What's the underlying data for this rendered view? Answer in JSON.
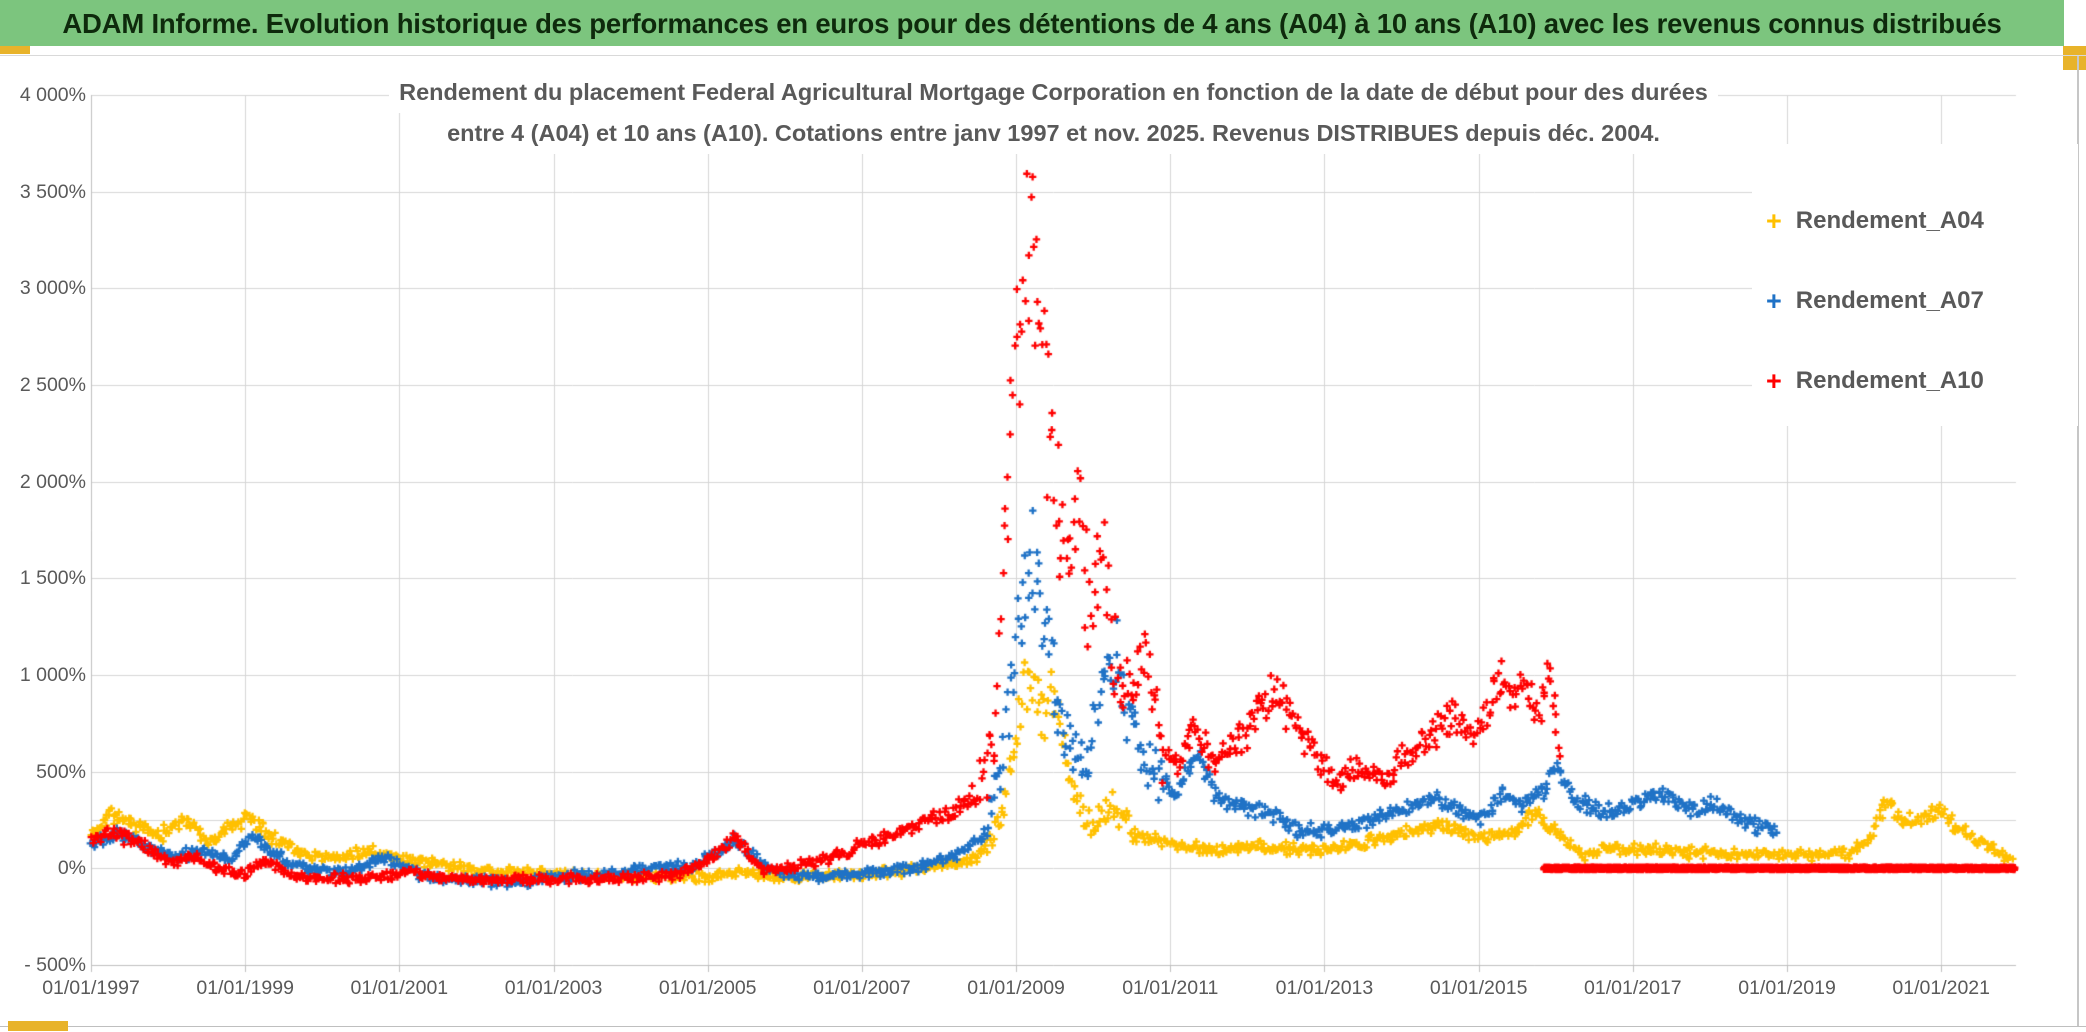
{
  "header": {
    "title": "ADAM Informe. Evolution historique des performances en euros pour des détentions de 4 ans (A04) à 10 ans (A10) avec les revenus connus distribués"
  },
  "chrome": {
    "header_bg": "#7cc57e",
    "header_text": "#0e2a0c",
    "accent_gold": "#e8b32a",
    "grid_color": "#d6d6d6",
    "axis_color": "#bfbfbf",
    "label_color": "#595959"
  },
  "chart_data": {
    "type": "scatter",
    "title_line1": "Rendement du placement Federal Agricultural Mortgage Corporation en fonction de la date de début pour des durées",
    "title_line2": "entre 4 (A04) et 10 ans (A10). Cotations entre janv 1997 et nov. 2025. Revenus DISTRIBUES depuis déc. 2004.",
    "grid": true,
    "legend_position": "right",
    "x_domain_years": [
      1997.0,
      2021.97
    ],
    "y_domain": [
      -500,
      4000
    ],
    "extra_gridline_value": 250,
    "x_ticks": [
      {
        "label": "01/01/1997",
        "year": 1997
      },
      {
        "label": "01/01/1999",
        "year": 1999
      },
      {
        "label": "01/01/2001",
        "year": 2001
      },
      {
        "label": "01/01/2003",
        "year": 2003
      },
      {
        "label": "01/01/2005",
        "year": 2005
      },
      {
        "label": "01/01/2007",
        "year": 2007
      },
      {
        "label": "01/01/2009",
        "year": 2009
      },
      {
        "label": "01/01/2011",
        "year": 2011
      },
      {
        "label": "01/01/2013",
        "year": 2013
      },
      {
        "label": "01/01/2015",
        "year": 2015
      },
      {
        "label": "01/01/2017",
        "year": 2017
      },
      {
        "label": "01/01/2019",
        "year": 2019
      },
      {
        "label": "01/01/2021",
        "year": 2021
      }
    ],
    "y_ticks": [
      {
        "label": "4 000%",
        "value": 4000
      },
      {
        "label": "3 500%",
        "value": 3500
      },
      {
        "label": "3 000%",
        "value": 3000
      },
      {
        "label": "2 500%",
        "value": 2500
      },
      {
        "label": "2 000%",
        "value": 2000
      },
      {
        "label": "1 500%",
        "value": 1500
      },
      {
        "label": "1 000%",
        "value": 1000
      },
      {
        "label": "500%",
        "value": 500
      },
      {
        "label": "0%",
        "value": 0
      },
      {
        "label": "- 500%",
        "value": -500
      }
    ],
    "series": [
      {
        "name": "Rendement_A04",
        "color": "#FFC000",
        "end": 2021.92,
        "control_points": [
          [
            1997.0,
            170
          ],
          [
            1997.25,
            280
          ],
          [
            1997.6,
            220
          ],
          [
            1997.9,
            170
          ],
          [
            1998.2,
            255
          ],
          [
            1998.55,
            135
          ],
          [
            1998.75,
            190
          ],
          [
            1999.05,
            275
          ],
          [
            1999.4,
            150
          ],
          [
            1999.8,
            75
          ],
          [
            2000.2,
            55
          ],
          [
            2000.6,
            95
          ],
          [
            2001.1,
            45
          ],
          [
            2001.6,
            15
          ],
          [
            2002.2,
            -15
          ],
          [
            2003.0,
            -30
          ],
          [
            2003.6,
            -45
          ],
          [
            2004.3,
            -40
          ],
          [
            2005.0,
            -45
          ],
          [
            2005.45,
            -15
          ],
          [
            2005.9,
            -50
          ],
          [
            2006.6,
            -40
          ],
          [
            2007.3,
            -25
          ],
          [
            2008.0,
            10
          ],
          [
            2008.5,
            60
          ],
          [
            2008.8,
            250
          ],
          [
            2009.0,
            650
          ],
          [
            2009.15,
            1000
          ],
          [
            2009.35,
            820
          ],
          [
            2009.5,
            950
          ],
          [
            2009.7,
            430
          ],
          [
            2009.95,
            230
          ],
          [
            2010.25,
            300
          ],
          [
            2010.6,
            170
          ],
          [
            2011.0,
            130
          ],
          [
            2011.5,
            95
          ],
          [
            2012.0,
            105
          ],
          [
            2012.4,
            110
          ],
          [
            2013.0,
            88
          ],
          [
            2013.8,
            160
          ],
          [
            2014.5,
            230
          ],
          [
            2015.1,
            160
          ],
          [
            2015.5,
            200
          ],
          [
            2015.75,
            290
          ],
          [
            2016.1,
            150
          ],
          [
            2016.35,
            60
          ],
          [
            2016.6,
            100
          ],
          [
            2017.2,
            100
          ],
          [
            2017.8,
            80
          ],
          [
            2018.5,
            72
          ],
          [
            2019.2,
            65
          ],
          [
            2019.8,
            80
          ],
          [
            2020.1,
            170
          ],
          [
            2020.28,
            355
          ],
          [
            2020.5,
            240
          ],
          [
            2020.75,
            250
          ],
          [
            2020.95,
            300
          ],
          [
            2021.2,
            210
          ],
          [
            2021.5,
            140
          ],
          [
            2021.7,
            90
          ],
          [
            2021.92,
            35
          ]
        ],
        "render": {
          "seed": 11,
          "base_noise": 30,
          "rel_noise": 0.07,
          "wild": [
            [
              2008.6,
              2010.6,
              2.0
            ]
          ],
          "clamp": [
            -70,
            1200
          ]
        }
      },
      {
        "name": "Rendement_A07",
        "color": "#1F72C6",
        "end": 2018.88,
        "control_points": [
          [
            1997.0,
            135
          ],
          [
            1997.35,
            195
          ],
          [
            1997.8,
            95
          ],
          [
            1998.1,
            65
          ],
          [
            1998.5,
            90
          ],
          [
            1998.8,
            45
          ],
          [
            1999.1,
            165
          ],
          [
            1999.5,
            40
          ],
          [
            1999.9,
            -5
          ],
          [
            2000.3,
            -25
          ],
          [
            2000.8,
            55
          ],
          [
            2001.3,
            -35
          ],
          [
            2001.9,
            -65
          ],
          [
            2002.3,
            -78
          ],
          [
            2002.9,
            -55
          ],
          [
            2003.6,
            -25
          ],
          [
            2004.2,
            -5
          ],
          [
            2004.8,
            15
          ],
          [
            2005.35,
            140
          ],
          [
            2005.9,
            -25
          ],
          [
            2006.5,
            -45
          ],
          [
            2007.1,
            -25
          ],
          [
            2007.7,
            5
          ],
          [
            2008.2,
            60
          ],
          [
            2008.6,
            180
          ],
          [
            2008.85,
            650
          ],
          [
            2009.05,
            1350
          ],
          [
            2009.2,
            1700
          ],
          [
            2009.35,
            1250
          ],
          [
            2009.55,
            850
          ],
          [
            2009.75,
            600
          ],
          [
            2009.95,
            560
          ],
          [
            2010.15,
            1000
          ],
          [
            2010.3,
            1080
          ],
          [
            2010.55,
            680
          ],
          [
            2010.8,
            470
          ],
          [
            2011.1,
            400
          ],
          [
            2011.35,
            620
          ],
          [
            2011.6,
            360
          ],
          [
            2011.9,
            310
          ],
          [
            2012.3,
            295
          ],
          [
            2012.7,
            190
          ],
          [
            2013.2,
            210
          ],
          [
            2013.7,
            255
          ],
          [
            2014.1,
            315
          ],
          [
            2014.45,
            360
          ],
          [
            2014.8,
            295
          ],
          [
            2015.05,
            255
          ],
          [
            2015.3,
            385
          ],
          [
            2015.55,
            330
          ],
          [
            2015.85,
            400
          ],
          [
            2016.02,
            545
          ],
          [
            2016.2,
            380
          ],
          [
            2016.5,
            300
          ],
          [
            2016.8,
            290
          ],
          [
            2017.1,
            350
          ],
          [
            2017.35,
            400
          ],
          [
            2017.6,
            330
          ],
          [
            2017.9,
            300
          ],
          [
            2018.1,
            340
          ],
          [
            2018.4,
            250
          ],
          [
            2018.65,
            220
          ],
          [
            2018.88,
            190
          ]
        ],
        "render": {
          "seed": 22,
          "base_noise": 30,
          "rel_noise": 0.07,
          "wild": [
            [
              2008.6,
              2010.9,
              2.5
            ]
          ],
          "clamp": [
            -95,
            1850
          ]
        }
      },
      {
        "name": "Rendement_A10",
        "color": "#FF0000",
        "end": 2016.05,
        "control_points": [
          [
            1997.0,
            150
          ],
          [
            1997.3,
            185
          ],
          [
            1997.7,
            110
          ],
          [
            1998.0,
            35
          ],
          [
            1998.35,
            60
          ],
          [
            1998.7,
            -15
          ],
          [
            1999.0,
            -30
          ],
          [
            1999.25,
            45
          ],
          [
            1999.6,
            -45
          ],
          [
            2000.0,
            -55
          ],
          [
            2000.6,
            -50
          ],
          [
            2001.1,
            -20
          ],
          [
            2001.7,
            -55
          ],
          [
            2002.4,
            -60
          ],
          [
            2003.2,
            -58
          ],
          [
            2004.0,
            -52
          ],
          [
            2004.6,
            -35
          ],
          [
            2005.05,
            55
          ],
          [
            2005.35,
            160
          ],
          [
            2005.7,
            -5
          ],
          [
            2006.1,
            5
          ],
          [
            2006.6,
            55
          ],
          [
            2007.0,
            120
          ],
          [
            2007.4,
            170
          ],
          [
            2007.8,
            230
          ],
          [
            2008.2,
            300
          ],
          [
            2008.5,
            390
          ],
          [
            2008.75,
            700
          ],
          [
            2008.95,
            2400
          ],
          [
            2009.1,
            3100
          ],
          [
            2009.18,
            3450
          ],
          [
            2009.3,
            2700
          ],
          [
            2009.45,
            2200
          ],
          [
            2009.6,
            1550
          ],
          [
            2009.8,
            1820
          ],
          [
            2009.95,
            1450
          ],
          [
            2010.12,
            1650
          ],
          [
            2010.3,
            1050
          ],
          [
            2010.5,
            880
          ],
          [
            2010.68,
            1120
          ],
          [
            2010.9,
            620
          ],
          [
            2011.1,
            500
          ],
          [
            2011.3,
            760
          ],
          [
            2011.55,
            545
          ],
          [
            2011.75,
            600
          ],
          [
            2011.95,
            660
          ],
          [
            2012.15,
            820
          ],
          [
            2012.35,
            930
          ],
          [
            2012.6,
            740
          ],
          [
            2012.9,
            610
          ],
          [
            2013.15,
            445
          ],
          [
            2013.45,
            520
          ],
          [
            2013.75,
            480
          ],
          [
            2014.05,
            560
          ],
          [
            2014.35,
            670
          ],
          [
            2014.65,
            780
          ],
          [
            2014.9,
            690
          ],
          [
            2015.1,
            790
          ],
          [
            2015.3,
            1020
          ],
          [
            2015.45,
            830
          ],
          [
            2015.6,
            980
          ],
          [
            2015.78,
            800
          ],
          [
            2015.92,
            1020
          ],
          [
            2016.05,
            580
          ]
        ],
        "render": {
          "seed": 33,
          "base_noise": 30,
          "rel_noise": 0.07,
          "wild": [
            [
              2008.5,
              2010.9,
              3.0
            ],
            [
              2010.9,
              2016.06,
              1.35
            ]
          ],
          "clamp": [
            -80,
            3620
          ]
        },
        "flat_segment": {
          "from": 2015.85,
          "to": 2021.95,
          "value": 0
        }
      }
    ]
  }
}
